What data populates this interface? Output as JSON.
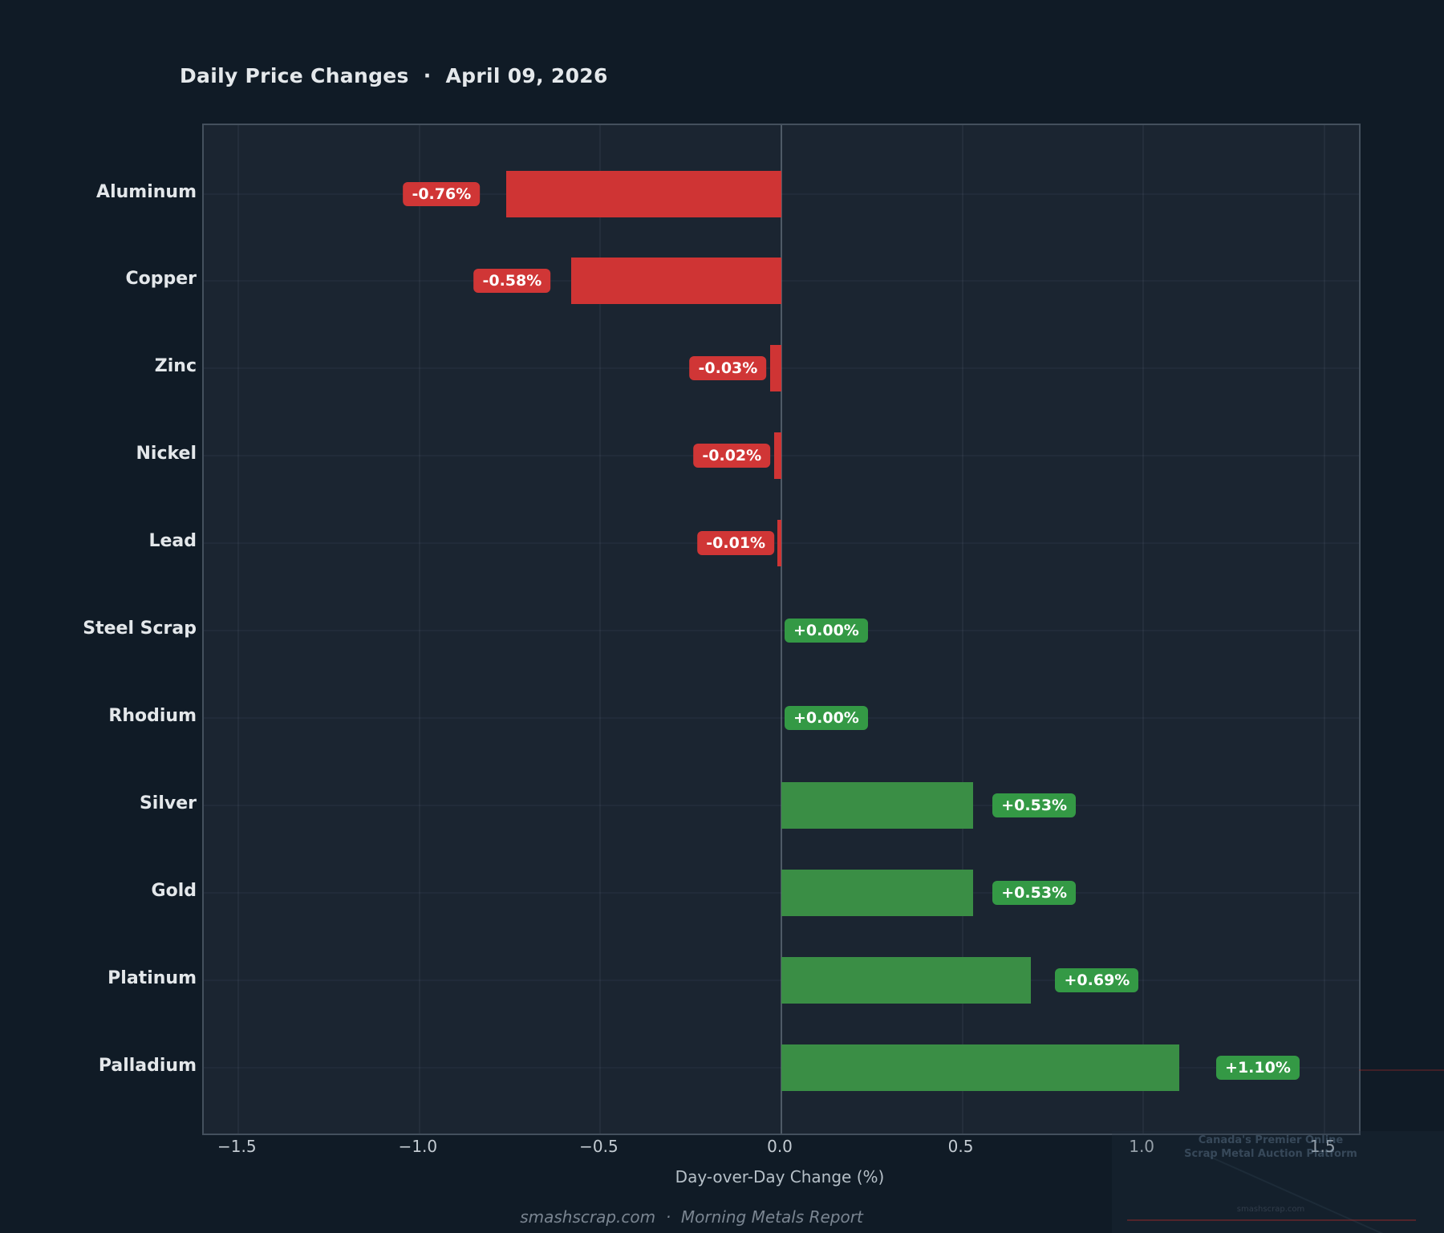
{
  "title": "Daily Price Changes  ·  April 09, 2026",
  "footer": "smashscrap.com  ·  Morning Metals Report",
  "watermark": {
    "line1": "Canada's Premier Online",
    "line2": "Scrap Metal Auction Platform",
    "small": "smashscrap.com"
  },
  "colors": {
    "background": "#101b26",
    "plot_background": "#1b2531",
    "plot_border": "#44505d",
    "negative": "#cf3434",
    "negative_badge": "#d03636",
    "positive": "#3a8e45",
    "positive_badge": "#349945",
    "zero_line": "#4e5a66",
    "title_text": "#e4e8eb",
    "tick_text": "#c3cbd2",
    "footer_text": "#7a8591"
  },
  "chart_data": {
    "type": "bar",
    "orientation": "horizontal",
    "title": "Daily Price Changes · April 09, 2026",
    "xlabel": "Day-over-Day Change (%)",
    "ylabel": "",
    "xlim": [
      -1.596,
      1.596
    ],
    "xticks": [
      -1.5,
      -1.0,
      -0.5,
      0.0,
      0.5,
      1.0,
      1.5
    ],
    "xtick_labels": [
      "−1.5",
      "−1.0",
      "−0.5",
      "0.0",
      "0.5",
      "1.0",
      "1.5"
    ],
    "grid": true,
    "legend": false,
    "categories": [
      "Aluminum",
      "Copper",
      "Zinc",
      "Nickel",
      "Lead",
      "Steel Scrap",
      "Rhodium",
      "Silver",
      "Gold",
      "Platinum",
      "Palladium"
    ],
    "values": [
      -0.76,
      -0.58,
      -0.03,
      -0.02,
      -0.01,
      0.0,
      0.0,
      0.53,
      0.53,
      0.69,
      1.1
    ],
    "value_labels": [
      "-0.76%",
      "-0.58%",
      "-0.03%",
      "-0.02%",
      "-0.01%",
      "+0.00%",
      "+0.00%",
      "+0.53%",
      "+0.53%",
      "+0.69%",
      "+1.10%"
    ]
  }
}
